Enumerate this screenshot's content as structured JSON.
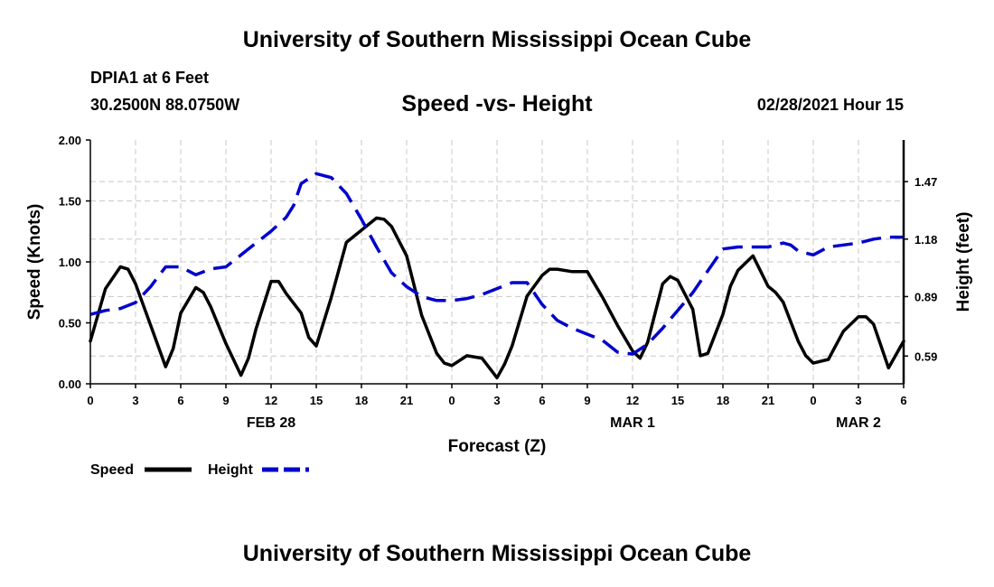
{
  "header": {
    "top_title": "University of Southern Mississippi Ocean Cube",
    "station": "DPIA1 at 6 Feet",
    "coords": "30.2500N 88.0750W",
    "subtitle": "Speed -vs- Height",
    "datetime": "02/28/2021 Hour 15",
    "bottom_title": "University of Southern Mississippi Ocean Cube"
  },
  "chart_data": {
    "type": "line",
    "title": "Speed -vs- Height",
    "xlabel": "Forecast (Z)",
    "ylabel": "Speed (Knots)",
    "y2label": "Height (feet)",
    "xlim": [
      0,
      54
    ],
    "ylim": [
      0,
      2.0
    ],
    "y2lim": [
      0.45,
      1.68
    ],
    "x_ticks": [
      0,
      3,
      6,
      9,
      12,
      15,
      18,
      21,
      24,
      27,
      30,
      33,
      36,
      39,
      42,
      45,
      48,
      51,
      54
    ],
    "x_tick_labels": [
      "0",
      "3",
      "6",
      "9",
      "12",
      "15",
      "18",
      "21",
      "0",
      "3",
      "6",
      "9",
      "12",
      "15",
      "18",
      "21",
      "0",
      "3",
      "6"
    ],
    "day_labels": [
      {
        "x": 12,
        "label": "FEB 28"
      },
      {
        "x": 36,
        "label": "MAR 1"
      },
      {
        "x": 51,
        "label": "MAR 2"
      }
    ],
    "y_ticks": [
      0,
      0.5,
      1.0,
      1.5,
      2.0
    ],
    "y_tick_labels": [
      "0.00",
      "0.50",
      "1.00",
      "1.50",
      "2.00"
    ],
    "y2_ticks": [
      0.59,
      0.89,
      1.18,
      1.47
    ],
    "y2_tick_labels": [
      "0.59",
      "0.89",
      "1.18",
      "1.47"
    ],
    "grid": true,
    "legend": [
      {
        "label": "Speed",
        "color": "#000000",
        "style": "solid"
      },
      {
        "label": "Height",
        "color": "#0000cc",
        "style": "dashed"
      }
    ],
    "series": [
      {
        "name": "Speed",
        "axis": "left",
        "color": "#000000",
        "dash": "solid",
        "x": [
          0,
          1,
          2,
          2.5,
          3,
          4,
          5,
          5.5,
          6,
          7,
          7.5,
          8,
          9,
          10,
          10.5,
          11,
          12,
          12.5,
          13,
          14,
          14.5,
          15,
          16,
          17,
          18,
          19,
          19.5,
          20,
          21,
          22,
          23,
          23.5,
          24,
          25,
          26,
          27,
          27.5,
          28,
          29,
          30,
          30.5,
          31,
          32,
          33,
          34,
          35,
          36,
          36.5,
          37,
          38,
          38.5,
          39,
          40,
          40.5,
          41,
          42,
          42.5,
          43,
          44,
          45,
          45.5,
          46,
          47,
          47.5,
          48,
          49,
          50,
          51,
          51.5,
          52,
          53,
          54
        ],
        "values": [
          0.35,
          0.78,
          0.96,
          0.94,
          0.82,
          0.48,
          0.14,
          0.29,
          0.58,
          0.79,
          0.75,
          0.63,
          0.33,
          0.07,
          0.21,
          0.45,
          0.84,
          0.84,
          0.74,
          0.58,
          0.38,
          0.31,
          0.71,
          1.16,
          1.26,
          1.36,
          1.35,
          1.29,
          1.05,
          0.56,
          0.25,
          0.17,
          0.15,
          0.23,
          0.21,
          0.05,
          0.16,
          0.31,
          0.72,
          0.89,
          0.94,
          0.94,
          0.92,
          0.92,
          0.71,
          0.48,
          0.27,
          0.21,
          0.34,
          0.82,
          0.88,
          0.85,
          0.61,
          0.23,
          0.25,
          0.57,
          0.8,
          0.93,
          1.05,
          0.8,
          0.75,
          0.67,
          0.35,
          0.23,
          0.17,
          0.2,
          0.43,
          0.55,
          0.55,
          0.49,
          0.13,
          0.35
        ]
      },
      {
        "name": "Height",
        "axis": "right",
        "color": "#0000cc",
        "dash": "dashed",
        "x": [
          0,
          1,
          2,
          3,
          4,
          5,
          6,
          7,
          8,
          9,
          10,
          11,
          12,
          13,
          13.5,
          14,
          15,
          16,
          17,
          18,
          19,
          20,
          21,
          22,
          23,
          24,
          25,
          26,
          27,
          28,
          29,
          30,
          31,
          32,
          33,
          34,
          35,
          36,
          37,
          38,
          39,
          40,
          41,
          42,
          43,
          44,
          45,
          46,
          46.5,
          47,
          48,
          49,
          50,
          51,
          52,
          53,
          54
        ],
        "values": [
          0.8,
          0.82,
          0.83,
          0.86,
          0.94,
          1.04,
          1.04,
          1.0,
          1.03,
          1.04,
          1.1,
          1.16,
          1.22,
          1.29,
          1.35,
          1.46,
          1.51,
          1.49,
          1.41,
          1.28,
          1.14,
          1.01,
          0.94,
          0.89,
          0.87,
          0.87,
          0.88,
          0.9,
          0.93,
          0.96,
          0.96,
          0.85,
          0.77,
          0.73,
          0.7,
          0.67,
          0.61,
          0.6,
          0.65,
          0.73,
          0.82,
          0.91,
          1.02,
          1.13,
          1.14,
          1.14,
          1.14,
          1.16,
          1.15,
          1.12,
          1.1,
          1.14,
          1.15,
          1.16,
          1.18,
          1.19,
          1.19
        ]
      }
    ]
  }
}
